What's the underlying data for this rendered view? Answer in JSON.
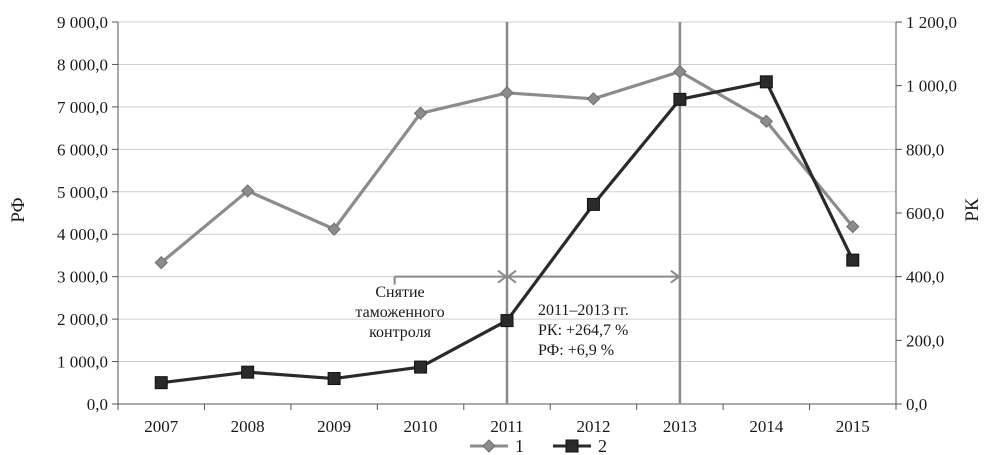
{
  "chart_data": {
    "type": "line",
    "x": [
      "2007",
      "2008",
      "2009",
      "2010",
      "2011",
      "2012",
      "2013",
      "2014",
      "2015"
    ],
    "series": [
      {
        "name": "1",
        "axis": "left",
        "color": "#8c8c8c",
        "marker": "diamond",
        "values": [
          3330,
          5020,
          4120,
          6850,
          7330,
          7190,
          7830,
          6660,
          4180
        ]
      },
      {
        "name": "2",
        "axis": "right",
        "color": "#2a2a2a",
        "marker": "square",
        "values": [
          67,
          100,
          80,
          116,
          262,
          627,
          957,
          1012,
          452
        ]
      }
    ],
    "ylabel_left": "РФ",
    "ylabel_right": "РК",
    "ylim_left": [
      0,
      9000
    ],
    "ylim_right": [
      0,
      1200
    ],
    "yticks_left": [
      "0,0",
      "1 000,0",
      "2 000,0",
      "3 000,0",
      "4 000,0",
      "5 000,0",
      "6 000,0",
      "7 000,0",
      "8 000,0",
      "9 000,0"
    ],
    "yticks_right": [
      "0,0",
      "200,0",
      "400,0",
      "600,0",
      "800,0",
      "1 000,0",
      "1 200,0"
    ],
    "grid": "horizontal",
    "legend": "bottom",
    "vertical_markers": [
      "2011",
      "2013"
    ],
    "annotations": {
      "customs_removal": [
        "Снятие",
        "таможенного",
        "контроля"
      ],
      "period_summary": [
        "2011–2013 гг.",
        "РК: +264,7 %",
        "РФ: +6,9 %"
      ]
    }
  }
}
